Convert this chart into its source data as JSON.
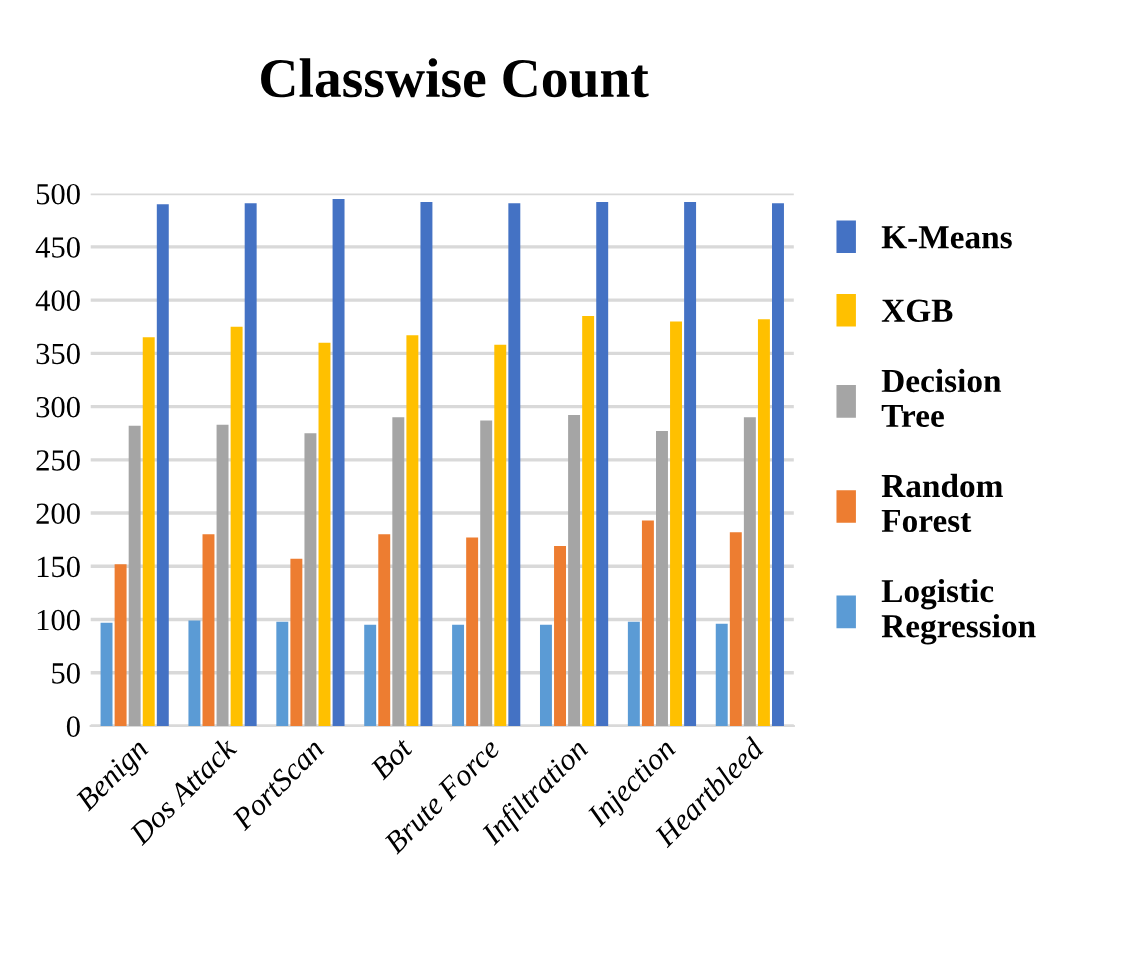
{
  "chart_data": {
    "type": "bar",
    "title": "Classwise Count",
    "categories": [
      "Benign",
      "Dos Attack",
      "PortScan",
      "Bot",
      "Brute Force",
      "Infiltration",
      "Injection",
      "Heartbleed"
    ],
    "series": [
      {
        "name": "Logistic Regression",
        "color": "#5b9bd5",
        "values": [
          97,
          99,
          98,
          95,
          95,
          95,
          98,
          96
        ]
      },
      {
        "name": "Random Forest",
        "color": "#ed7d31",
        "values": [
          152,
          180,
          157,
          180,
          177,
          169,
          193,
          182
        ]
      },
      {
        "name": "Decision Tree",
        "color": "#a5a5a5",
        "values": [
          282,
          283,
          275,
          290,
          287,
          292,
          277,
          290
        ]
      },
      {
        "name": "XGB",
        "color": "#ffc000",
        "values": [
          365,
          375,
          360,
          367,
          358,
          385,
          380,
          382
        ]
      },
      {
        "name": "K-Means",
        "color": "#4472c4",
        "values": [
          490,
          491,
          495,
          492,
          491,
          492,
          492,
          491
        ]
      }
    ],
    "ylim": [
      0,
      500
    ],
    "yticks": [
      0,
      50,
      100,
      150,
      200,
      250,
      300,
      350,
      400,
      450,
      500
    ],
    "grid": "y",
    "legend": "right"
  }
}
